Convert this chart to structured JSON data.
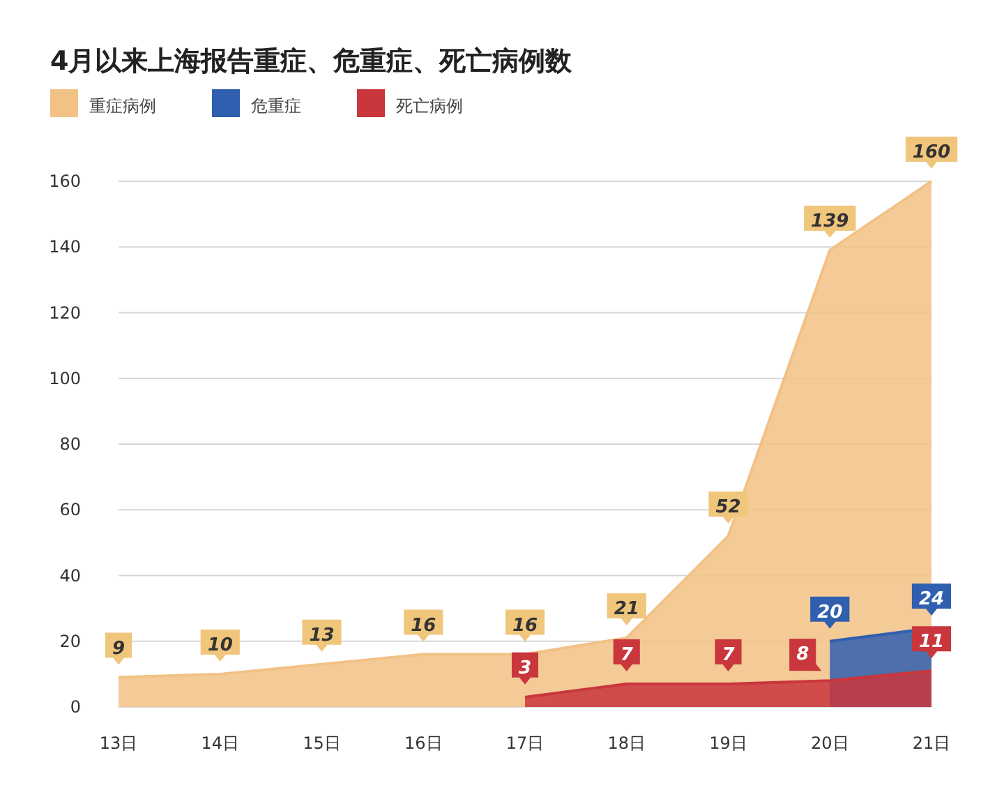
{
  "chart_data": {
    "type": "area",
    "title": "4月以来上海报告重症、危重症、死亡病例数",
    "categories": [
      "13日",
      "14日",
      "15日",
      "16日",
      "17日",
      "18日",
      "19日",
      "20日",
      "21日"
    ],
    "series": [
      {
        "name": "重症病例",
        "color": "#f2c185",
        "values": [
          9,
          10,
          13,
          16,
          16,
          21,
          52,
          139,
          160
        ]
      },
      {
        "name": "危重症",
        "color": "#2f5fae",
        "values": [
          null,
          null,
          null,
          null,
          null,
          null,
          null,
          20,
          24
        ]
      },
      {
        "name": "死亡病例",
        "color": "#c9363c",
        "values": [
          null,
          null,
          null,
          null,
          3,
          7,
          7,
          8,
          11
        ]
      }
    ],
    "ylim": [
      0,
      160
    ],
    "yticks": [
      0,
      20,
      40,
      60,
      80,
      100,
      120,
      140,
      160
    ],
    "grid": "y",
    "legend": "top left",
    "data_labels": true
  }
}
